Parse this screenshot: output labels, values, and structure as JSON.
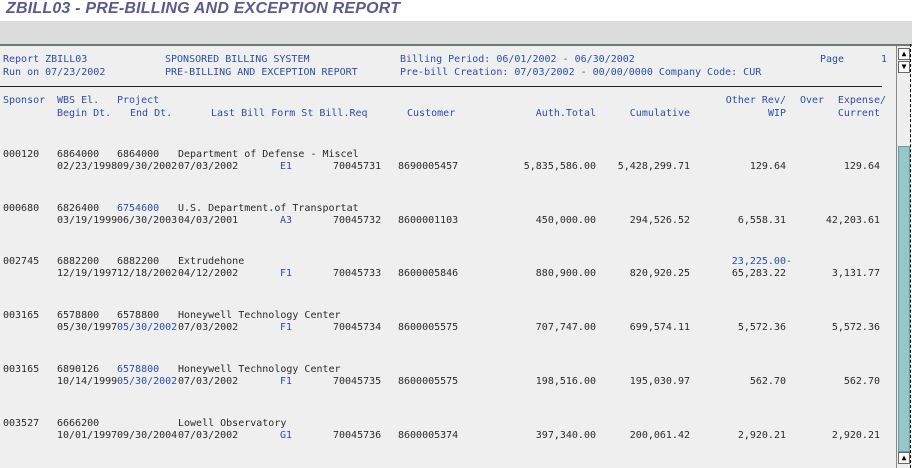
{
  "window": {
    "title": "ZBILL03 - PRE-BILLING AND EXCEPTION REPORT"
  },
  "report_header": {
    "report_id": "Report ZBILL03",
    "run_on": "Run on 07/23/2002",
    "system": "SPONSORED BILLING SYSTEM",
    "report_name": "PRE-BILLING AND EXCEPTION REPORT",
    "billing_period": "Billing Period: 06/01/2002 - 06/30/2002",
    "prebill_creation": "Pre-bill Creation: 07/03/2002 - 00/00/0000 Company Code: CUR",
    "page_label": "Page",
    "page_number": "1"
  },
  "columns": {
    "sponsor": "Sponsor",
    "wbs": "WBS El.",
    "project": "Project",
    "begin_dt": "Begin Dt.",
    "end_dt": "End Dt.",
    "last_bill": "Last Bill Form St Bill.Req",
    "customer": "Customer",
    "auth_total": "Auth.Total",
    "cumulative": "Cumulative",
    "other_rev": "Other Rev/",
    "wip": "WIP",
    "over": "Over",
    "expense": "Expense/",
    "current": "Current"
  },
  "rows": [
    {
      "sponsor": "000120",
      "wbs": "6864000",
      "project": "6864000",
      "project_link": false,
      "name": "Department of Defense - Miscel",
      "begin": "02/23/1998",
      "end": "09/30/2002",
      "end_link": false,
      "last_bill": "07/03/2002",
      "form": "E1",
      "bill_req": "70045731",
      "customer": "8690005457",
      "auth_total": "5,835,586.00",
      "cumulative": "5,428,299.71",
      "other_rev": "",
      "wip": "129.64",
      "current": "129.64"
    },
    {
      "sponsor": "000680",
      "wbs": "6826400",
      "project": "6754600",
      "project_link": true,
      "name": "U.S. Department.of Transportat",
      "begin": "03/19/1999",
      "end": "06/30/2003",
      "end_link": false,
      "last_bill": "04/03/2001",
      "form": "A3",
      "bill_req": "70045732",
      "customer": "8600001103",
      "auth_total": "450,000.00",
      "cumulative": "294,526.52",
      "other_rev": "",
      "wip": "6,558.31",
      "current": "42,203.61"
    },
    {
      "sponsor": "002745",
      "wbs": "6882200",
      "project": "6882200",
      "project_link": false,
      "name": "Extrudehone",
      "begin": "12/19/1997",
      "end": "12/18/2002",
      "end_link": false,
      "last_bill": "04/12/2002",
      "form": "F1",
      "bill_req": "70045733",
      "customer": "8600005846",
      "auth_total": "880,900.00",
      "cumulative": "820,920.25",
      "other_rev": "23,225.00-",
      "wip": "65,283.22",
      "current": "3,131.77"
    },
    {
      "sponsor": "003165",
      "wbs": "6578800",
      "project": "6578800",
      "project_link": false,
      "name": "Honeywell Technology Center",
      "begin": "05/30/1997",
      "end": "05/30/2002",
      "end_link": true,
      "last_bill": "07/03/2002",
      "form": "F1",
      "bill_req": "70045734",
      "customer": "8600005575",
      "auth_total": "707,747.00",
      "cumulative": "699,574.11",
      "other_rev": "",
      "wip": "5,572.36",
      "current": "5,572.36"
    },
    {
      "sponsor": "003165",
      "wbs": "6890126",
      "project": "6578800",
      "project_link": true,
      "name": "Honeywell Technology Center",
      "begin": "10/14/1999",
      "end": "05/30/2002",
      "end_link": true,
      "last_bill": "07/03/2002",
      "form": "F1",
      "bill_req": "70045735",
      "customer": "8600005575",
      "auth_total": "198,516.00",
      "cumulative": "195,030.97",
      "other_rev": "",
      "wip": "562.70",
      "current": "562.70"
    },
    {
      "sponsor": "003527",
      "wbs": "6666200",
      "project": "",
      "project_link": false,
      "name": "Lowell Observatory",
      "begin": "10/01/1997",
      "end": "09/30/2004",
      "end_link": false,
      "last_bill": "07/03/2002",
      "form": "G1",
      "bill_req": "70045736",
      "customer": "8600005374",
      "auth_total": "397,340.00",
      "cumulative": "200,061.42",
      "other_rev": "",
      "wip": "2,920.21",
      "current": "2,920.21"
    }
  ],
  "colors": {
    "link": "#2a4ea8",
    "title": "#5a5a8e",
    "scroll_thumb": "#94c8c8"
  }
}
